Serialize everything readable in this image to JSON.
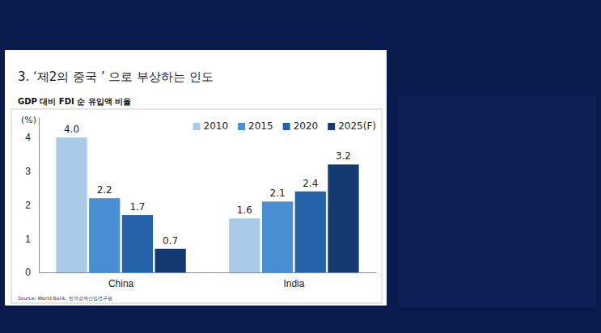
{
  "chart_data": {
    "type": "bar",
    "title": "3. ‘제2의 중국 ’ 으로 부상하는 인도",
    "subtitle": "GDP 대비 FDI 순 유입액 비율",
    "y_label": "(%)",
    "source": "Source: World Bank, 한국경제산업연구원",
    "categories": [
      "China",
      "India"
    ],
    "series": [
      {
        "name": "2010",
        "color": "#a9cbe9",
        "values": [
          4.0,
          1.6
        ],
        "value_labels": [
          "4.0",
          "1.6"
        ]
      },
      {
        "name": "2015",
        "color": "#4a8fd3",
        "values": [
          2.2,
          2.1
        ]
      },
      {
        "name": "2020",
        "color": "#2463aa",
        "values": [
          1.7,
          2.4
        ]
      },
      {
        "name": "2025(F)",
        "color": "#143a72",
        "values": [
          0.7,
          3.2
        ]
      }
    ],
    "ylim": [
      0,
      4.6
    ],
    "yticks": [
      0,
      1,
      2,
      3,
      4
    ],
    "grid": false,
    "legend": "upper right",
    "data_labels": true
  }
}
